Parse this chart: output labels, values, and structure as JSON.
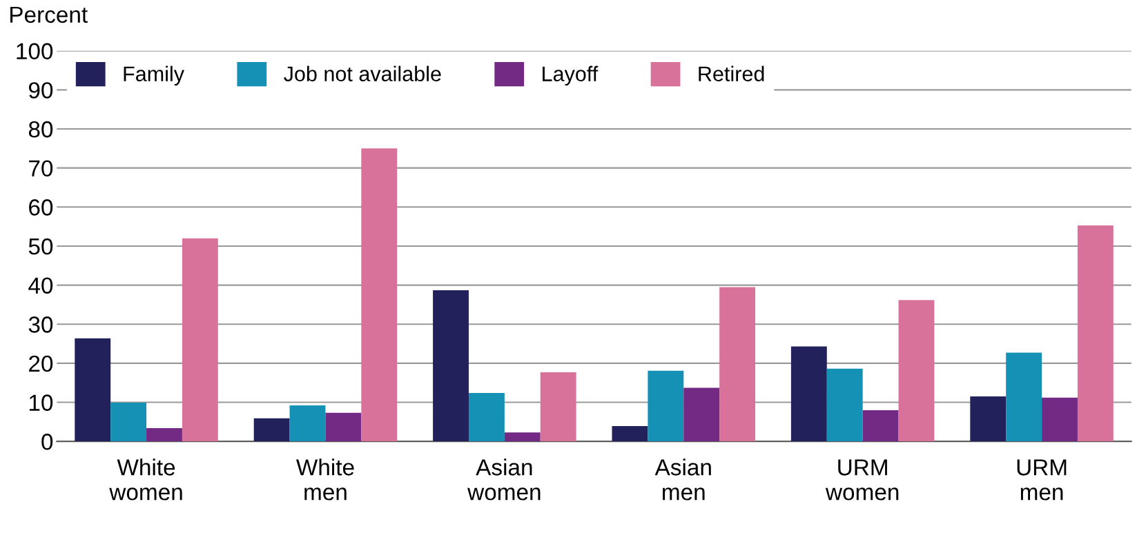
{
  "chart_data": {
    "type": "bar",
    "ylabel": "Percent",
    "categories": [
      "White\nwomen",
      "White\nmen",
      "Asian\nwomen",
      "Asian\nmen",
      "URM\nwomen",
      "URM\nmen"
    ],
    "series": [
      {
        "name": "Family",
        "color": "#22215b",
        "values": [
          26.4,
          5.9,
          38.7,
          3.9,
          24.3,
          11.5
        ]
      },
      {
        "name": "Job not available",
        "color": "#1591b5",
        "values": [
          9.9,
          9.2,
          12.4,
          18.1,
          18.6,
          22.7
        ]
      },
      {
        "name": "Layoff",
        "color": "#722a85",
        "values": [
          3.4,
          7.3,
          2.3,
          13.7,
          8.0,
          11.2
        ]
      },
      {
        "name": "Retired",
        "color": "#d9729b",
        "values": [
          52.0,
          75.0,
          17.7,
          39.5,
          36.2,
          55.3
        ]
      }
    ],
    "ylim": [
      0,
      100
    ],
    "yticks": [
      0,
      10,
      20,
      30,
      40,
      50,
      60,
      70,
      80,
      90,
      100
    ],
    "grid": "y",
    "legend": "top left"
  }
}
